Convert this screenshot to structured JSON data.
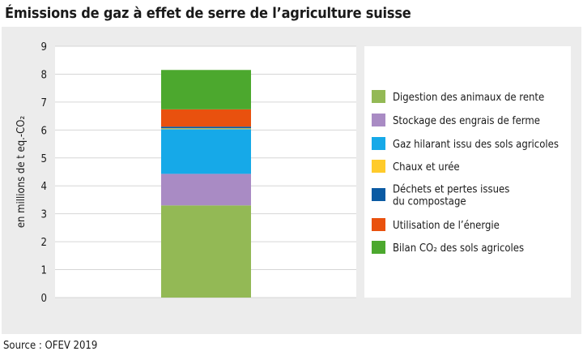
{
  "title": "Émissions de gaz à effet de serre de l’agriculture suisse",
  "source": "Source : OFEV 2019",
  "chart_data": {
    "type": "bar",
    "stacked": true,
    "categories": [
      ""
    ],
    "ylabel": "en millions de t eq.-CO₂",
    "ylim": [
      0,
      9
    ],
    "yticks": [
      0,
      1,
      2,
      3,
      4,
      5,
      6,
      7,
      8,
      9
    ],
    "grid": true,
    "legend_position": "right",
    "series": [
      {
        "name": "Digestion des animaux de rente",
        "values": [
          3.3
        ],
        "color": "#93b955"
      },
      {
        "name": "Stockage des engrais de ferme",
        "values": [
          1.13
        ],
        "color": "#a98bc4"
      },
      {
        "name": "Gaz hilarant issu des sols agricoles",
        "values": [
          1.6
        ],
        "color": "#16a9e8"
      },
      {
        "name": "Chaux et urée",
        "values": [
          0.03
        ],
        "color": "#ffcb2b"
      },
      {
        "name": "Déchets et pertes issues du compostage",
        "values": [
          0.06
        ],
        "color": "#0a5aa3"
      },
      {
        "name": "Utilisation de l’énergie",
        "values": [
          0.62
        ],
        "color": "#e9510e"
      },
      {
        "name": "Bilan CO₂ des sols agricoles",
        "values": [
          1.41
        ],
        "color": "#4ca82e"
      }
    ]
  }
}
